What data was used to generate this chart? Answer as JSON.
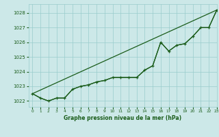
{
  "title": "Graphe pression niveau de la mer (hPa)",
  "bg_color": "#cce8e8",
  "grid_color": "#99cccc",
  "line_color": "#1a5c1a",
  "xlim": [
    -0.5,
    23
  ],
  "ylim": [
    1021.6,
    1028.6
  ],
  "yticks": [
    1022,
    1023,
    1024,
    1025,
    1026,
    1027,
    1028
  ],
  "xticks": [
    0,
    1,
    2,
    3,
    4,
    5,
    6,
    7,
    8,
    9,
    10,
    11,
    12,
    13,
    14,
    15,
    16,
    17,
    18,
    19,
    20,
    21,
    22,
    23
  ],
  "series_smooth": {
    "x": [
      0,
      1,
      2,
      3,
      4,
      5,
      6,
      7,
      8,
      9,
      10,
      11,
      12,
      13,
      14,
      15,
      16,
      17,
      18,
      19,
      20,
      21,
      22,
      23
    ],
    "y": [
      1022.5,
      1022.2,
      1022.0,
      1022.2,
      1022.2,
      1022.8,
      1023.0,
      1023.1,
      1023.3,
      1023.4,
      1023.6,
      1023.6,
      1023.6,
      1023.6,
      1024.1,
      1024.4,
      1026.0,
      1025.4,
      1025.8,
      1025.9,
      1026.4,
      1027.0,
      1027.0,
      1028.2
    ]
  },
  "series_markers": {
    "x": [
      0,
      1,
      2,
      3,
      4,
      5,
      6,
      7,
      8,
      9,
      10,
      11,
      12,
      13,
      14,
      15,
      16,
      17,
      18,
      19,
      20,
      21,
      22,
      23
    ],
    "y": [
      1022.5,
      1022.2,
      1022.0,
      1022.2,
      1022.2,
      1022.8,
      1023.0,
      1023.1,
      1023.3,
      1023.4,
      1023.6,
      1023.6,
      1023.6,
      1023.6,
      1024.1,
      1024.4,
      1026.0,
      1025.4,
      1025.8,
      1025.9,
      1026.4,
      1027.0,
      1027.0,
      1028.2
    ]
  },
  "series_diagonal": {
    "x": [
      0,
      23
    ],
    "y": [
      1022.5,
      1028.2
    ]
  }
}
